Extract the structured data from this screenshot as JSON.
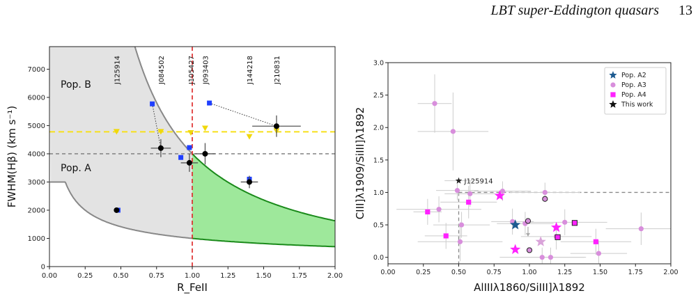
{
  "page": {
    "running_title": "LBT super-Eddington quasars",
    "page_number": "13"
  },
  "chart_data": [
    {
      "type": "scatter",
      "title": "",
      "xlabel": "R_FeII",
      "ylabel": "FWHM(Hβ) (km s⁻¹)",
      "xlim": [
        0,
        2.0
      ],
      "ylim": [
        0,
        7800
      ],
      "x_ticks": [
        "0.00",
        "0.25",
        "0.50",
        "0.75",
        "1.00",
        "1.25",
        "1.50",
        "1.75",
        "2.00"
      ],
      "y_ticks": [
        "0",
        "1000",
        "2000",
        "3000",
        "4000",
        "5000",
        "6000",
        "7000"
      ],
      "region_labels": [
        "Pop. B",
        "Pop. A"
      ],
      "colors": {
        "gray_fill": "#e3e3e3",
        "green_fill": "#9ee89b",
        "green_line": "#1a8a1a",
        "red_line": "#dd2222",
        "yellow_line": "#f7e01a",
        "blue": "#1f3fff",
        "black": "#000000"
      },
      "reference_lines": {
        "horizontal_gray": 4000,
        "horizontal_yellow": 4780,
        "vertical_red": 1.0
      },
      "object_labels": [
        {
          "text": "J125914",
          "x": 0.47
        },
        {
          "text": "J084502",
          "x": 0.78
        },
        {
          "text": "J105427",
          "x": 0.99
        },
        {
          "text": "J093403",
          "x": 1.09
        },
        {
          "text": "J144218",
          "x": 1.4
        },
        {
          "text": "J210831",
          "x": 1.59
        }
      ],
      "black_points": [
        {
          "x": 0.47,
          "y": 2000,
          "xerr": 0.0,
          "yerr": 0
        },
        {
          "x": 0.78,
          "y": 4200,
          "xerr": 0.07,
          "yerr": 320
        },
        {
          "x": 0.98,
          "y": 3680,
          "xerr": 0.06,
          "yerr": 320
        },
        {
          "x": 1.09,
          "y": 4000,
          "xerr": 0.07,
          "yerr": 380
        },
        {
          "x": 1.4,
          "y": 3000,
          "xerr": 0.06,
          "yerr": 220
        },
        {
          "x": 1.59,
          "y": 4980,
          "xerr": 0.17,
          "yerr": 380
        }
      ],
      "blue_squares": [
        {
          "x": 0.48,
          "y": 2000
        },
        {
          "x": 0.72,
          "y": 5770
        },
        {
          "x": 0.92,
          "y": 3870
        },
        {
          "x": 0.98,
          "y": 4220
        },
        {
          "x": 1.12,
          "y": 5800
        },
        {
          "x": 1.4,
          "y": 3100
        }
      ],
      "yellow_triangles": [
        {
          "x": 0.47,
          "y": 4780
        },
        {
          "x": 0.78,
          "y": 4780
        },
        {
          "x": 0.99,
          "y": 4740
        },
        {
          "x": 1.09,
          "y": 4900
        },
        {
          "x": 1.4,
          "y": 4600
        },
        {
          "x": 1.59,
          "y": 4800
        }
      ]
    },
    {
      "type": "scatter",
      "title": "",
      "xlabel": "AlIIIλ1860/SiIII]λ1892",
      "ylabel": "CIII]λ1909/SiIII]λ1892",
      "xlim": [
        0,
        2.0
      ],
      "ylim": [
        -0.1,
        3.0
      ],
      "x_ticks": [
        "0.00",
        "0.25",
        "0.50",
        "0.75",
        "1.00",
        "1.25",
        "1.50",
        "1.75",
        "2.00"
      ],
      "y_ticks": [
        "0.0",
        "0.5",
        "1.0",
        "1.5",
        "2.0",
        "2.5",
        "3.0"
      ],
      "legend": {
        "placement": "top-right",
        "entries": [
          "Pop. A2",
          "Pop. A3",
          "Pop. A4",
          "This work"
        ]
      },
      "annotation": {
        "text": "J125914",
        "x": 0.5,
        "y": 1.18
      },
      "colors": {
        "popA2": "#1c5a90",
        "popA3": "#d88edc",
        "popA4": "#ff22ff",
        "this_work": "#222222",
        "error": "#cccccc",
        "dashed": "#888888",
        "arrow": "#aaaaaa"
      },
      "dashed_box": {
        "x": 0.5,
        "y": 1.0
      },
      "this_work": [
        {
          "x": 0.5,
          "y": 1.18,
          "xerr": 0.1
        }
      ],
      "pop_a2": [
        {
          "x": 0.9,
          "y": 0.5
        }
      ],
      "pop_a3_circles": [
        {
          "x": 0.33,
          "y": 2.37,
          "xerr": 0.12,
          "yerr": 0.45
        },
        {
          "x": 0.46,
          "y": 1.94,
          "xerr": 0.25,
          "yerr": 0.6
        },
        {
          "x": 0.49,
          "y": 1.03,
          "xerr": 0.15,
          "yerr": 0.15
        },
        {
          "x": 0.58,
          "y": 0.98,
          "xerr": 0.18,
          "yerr": 0.2
        },
        {
          "x": 0.81,
          "y": 1.02,
          "xerr": 0.2,
          "yerr": 0.15
        },
        {
          "x": 1.11,
          "y": 1.0,
          "xerr": 0.25,
          "yerr": 0.15
        },
        {
          "x": 0.36,
          "y": 0.74,
          "xerr": 0.3,
          "yerr": 0.2
        },
        {
          "x": 0.52,
          "y": 0.5,
          "xerr": 0.2,
          "yerr": 0.2
        },
        {
          "x": 0.97,
          "y": 0.52,
          "xerr": 0.2,
          "yerr": 0.18
        },
        {
          "x": 1.25,
          "y": 0.54,
          "xerr": 0.3,
          "yerr": 0.2
        },
        {
          "x": 1.79,
          "y": 0.44,
          "xerr": 0.25,
          "yerr": 0.25
        },
        {
          "x": 0.51,
          "y": 0.24,
          "xerr": 0.3,
          "yerr": 0.3
        },
        {
          "x": 1.19,
          "y": 0.32,
          "xerr": 0.25,
          "yerr": 0.2
        },
        {
          "x": 1.09,
          "y": 0.0,
          "xerr": 0.3,
          "yerr": 0.15
        },
        {
          "x": 1.15,
          "y": 0.0,
          "xerr": 0.25,
          "yerr": 0.15
        },
        {
          "x": 1.49,
          "y": 0.06,
          "xerr": 0.2,
          "yerr": 0.2
        },
        {
          "x": 0.88,
          "y": 0.55,
          "xerr": 0.15,
          "yerr": 0.2
        }
      ],
      "pop_a3_outlined": [
        {
          "x": 0.99,
          "y": 0.56
        },
        {
          "x": 1.11,
          "y": 0.9
        },
        {
          "x": 1.0,
          "y": 0.11
        }
      ],
      "pop_a4_squares": [
        {
          "x": 0.28,
          "y": 0.7,
          "xerr": 0.1,
          "yerr": 0.2
        },
        {
          "x": 0.41,
          "y": 0.33,
          "xerr": 0.15,
          "yerr": 0.2
        },
        {
          "x": 0.57,
          "y": 0.85,
          "xerr": 0.2,
          "yerr": 0.25
        },
        {
          "x": 1.47,
          "y": 0.24,
          "xerr": 0.25,
          "yerr": 0.2
        }
      ],
      "pop_a4_outlined": [
        {
          "x": 1.2,
          "y": 0.31
        },
        {
          "x": 1.32,
          "y": 0.53
        }
      ],
      "pop_a4_stars": [
        {
          "x": 0.79,
          "y": 0.95
        },
        {
          "x": 0.9,
          "y": 0.12
        },
        {
          "x": 1.19,
          "y": 0.46
        }
      ],
      "pale_stars": [
        {
          "x": 1.08,
          "y": 0.24
        }
      ],
      "arrow_points": [
        {
          "x": 0.99,
          "y": 0.47
        }
      ]
    }
  ]
}
